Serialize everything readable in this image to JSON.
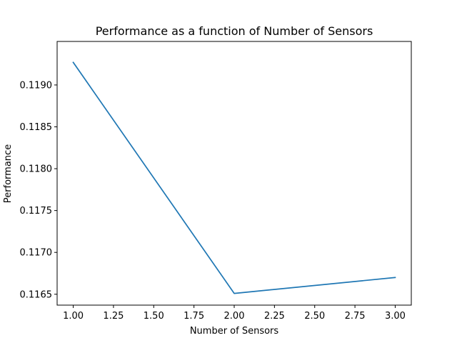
{
  "chart_data": {
    "type": "line",
    "title": "Performance as a function of Number of Sensors",
    "xlabel": "Number of Sensors",
    "ylabel": "Performance",
    "xlim": [
      0.9,
      3.1
    ],
    "ylim": [
      0.11637,
      0.11952
    ],
    "xticks": [
      1.0,
      1.25,
      1.5,
      1.75,
      2.0,
      2.25,
      2.5,
      2.75,
      3.0
    ],
    "xtick_labels": [
      "1.00",
      "1.25",
      "1.50",
      "1.75",
      "2.00",
      "2.25",
      "2.50",
      "2.75",
      "3.00"
    ],
    "yticks": [
      0.1165,
      0.117,
      0.1175,
      0.118,
      0.1185,
      0.119
    ],
    "ytick_labels": [
      "0.1165",
      "0.1170",
      "0.1175",
      "0.1180",
      "0.1185",
      "0.1190"
    ],
    "grid": false,
    "series": [
      {
        "color": "#1f77b4",
        "x": [
          1,
          2,
          3
        ],
        "y": [
          0.11927,
          0.11651,
          0.1167
        ]
      }
    ]
  }
}
